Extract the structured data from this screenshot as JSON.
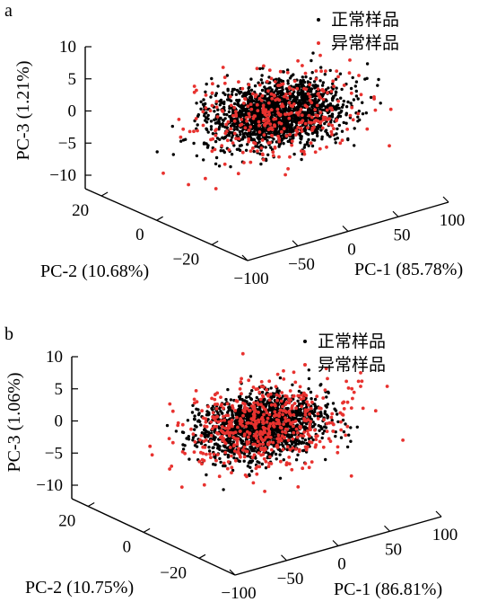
{
  "chart_data": [
    {
      "panel": "a",
      "type": "scatter",
      "xlabel": "PC-1 (85.78%)",
      "ylabel": "PC-2 (10.68%)",
      "zlabel": "PC-3 (1.21%)",
      "xticks": [
        "−100",
        "−50",
        "0",
        "50",
        "100"
      ],
      "yticks": [
        "−20",
        "0",
        "20"
      ],
      "zticks": [
        "−10",
        "−5",
        "0",
        "5",
        "10"
      ],
      "xlim": [
        -100,
        100
      ],
      "ylim": [
        -30,
        30
      ],
      "zlim": [
        -12,
        10
      ],
      "legend_placement": "top-right",
      "series": [
        {
          "name": "正常样品",
          "color": "#000000",
          "count": 1700,
          "spread": [
            38,
            9,
            2.6
          ],
          "center": [
            0,
            0,
            -0.8
          ]
        },
        {
          "name": "异常样品",
          "color": "#e8322f",
          "count": 320,
          "spread": [
            48,
            12,
            3.6
          ],
          "center": [
            3,
            0,
            -0.8
          ]
        }
      ]
    },
    {
      "panel": "b",
      "type": "scatter",
      "xlabel": "PC-1 (86.81%)",
      "ylabel": "PC-2 (10.75%)",
      "zlabel": "PC-3 (1.06%)",
      "xticks": [
        "−100",
        "−50",
        "0",
        "50",
        "100"
      ],
      "yticks": [
        "−20",
        "0",
        "20"
      ],
      "zticks": [
        "−10",
        "−5",
        "0",
        "5",
        "10"
      ],
      "xlim": [
        -100,
        100
      ],
      "ylim": [
        -30,
        30
      ],
      "zlim": [
        -12,
        10
      ],
      "legend_placement": "top-right",
      "series": [
        {
          "name": "正常样品",
          "color": "#000000",
          "count": 1600,
          "spread": [
            34,
            8,
            2.5
          ],
          "center": [
            0,
            0,
            -1.0
          ]
        },
        {
          "name": "异常样品",
          "color": "#e8322f",
          "count": 520,
          "spread": [
            44,
            12,
            3.2
          ],
          "center": [
            4,
            0,
            -1.0
          ]
        }
      ]
    }
  ]
}
